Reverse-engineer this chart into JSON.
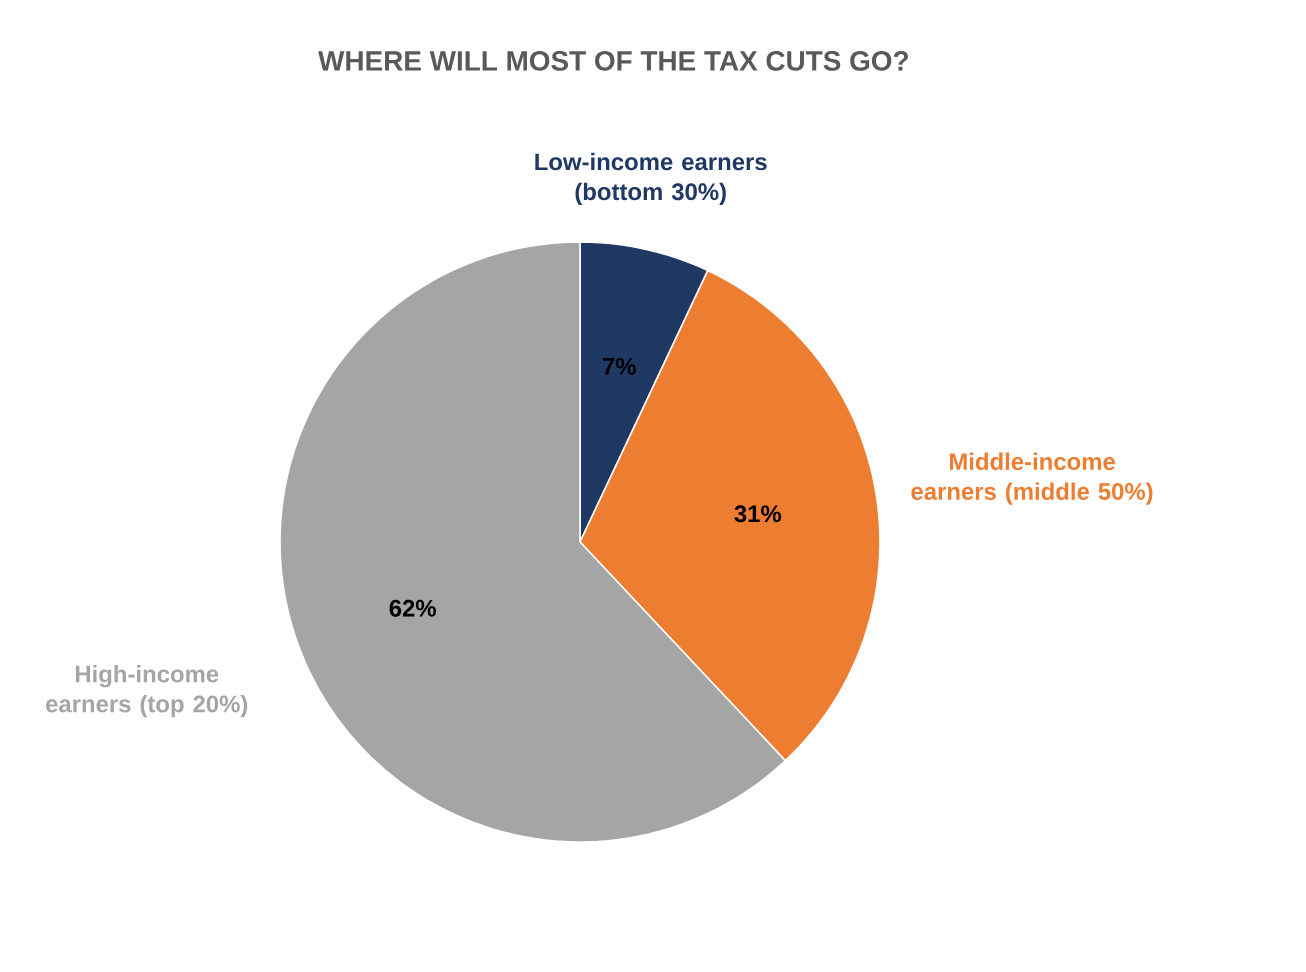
{
  "chart_data": {
    "type": "pie",
    "title": "WHERE WILL MOST OF THE TAX CUTS GO?",
    "categories": [
      "Low-income earners (bottom 30%)",
      "Middle-income earners (middle 50%)",
      "High-income earners (top 20%)"
    ],
    "values": [
      7,
      31,
      62
    ],
    "value_labels": [
      "7%",
      "31%",
      "62%"
    ],
    "colors": [
      "#1f3864",
      "#ed7d31",
      "#a5a5a5"
    ],
    "legend": false
  }
}
